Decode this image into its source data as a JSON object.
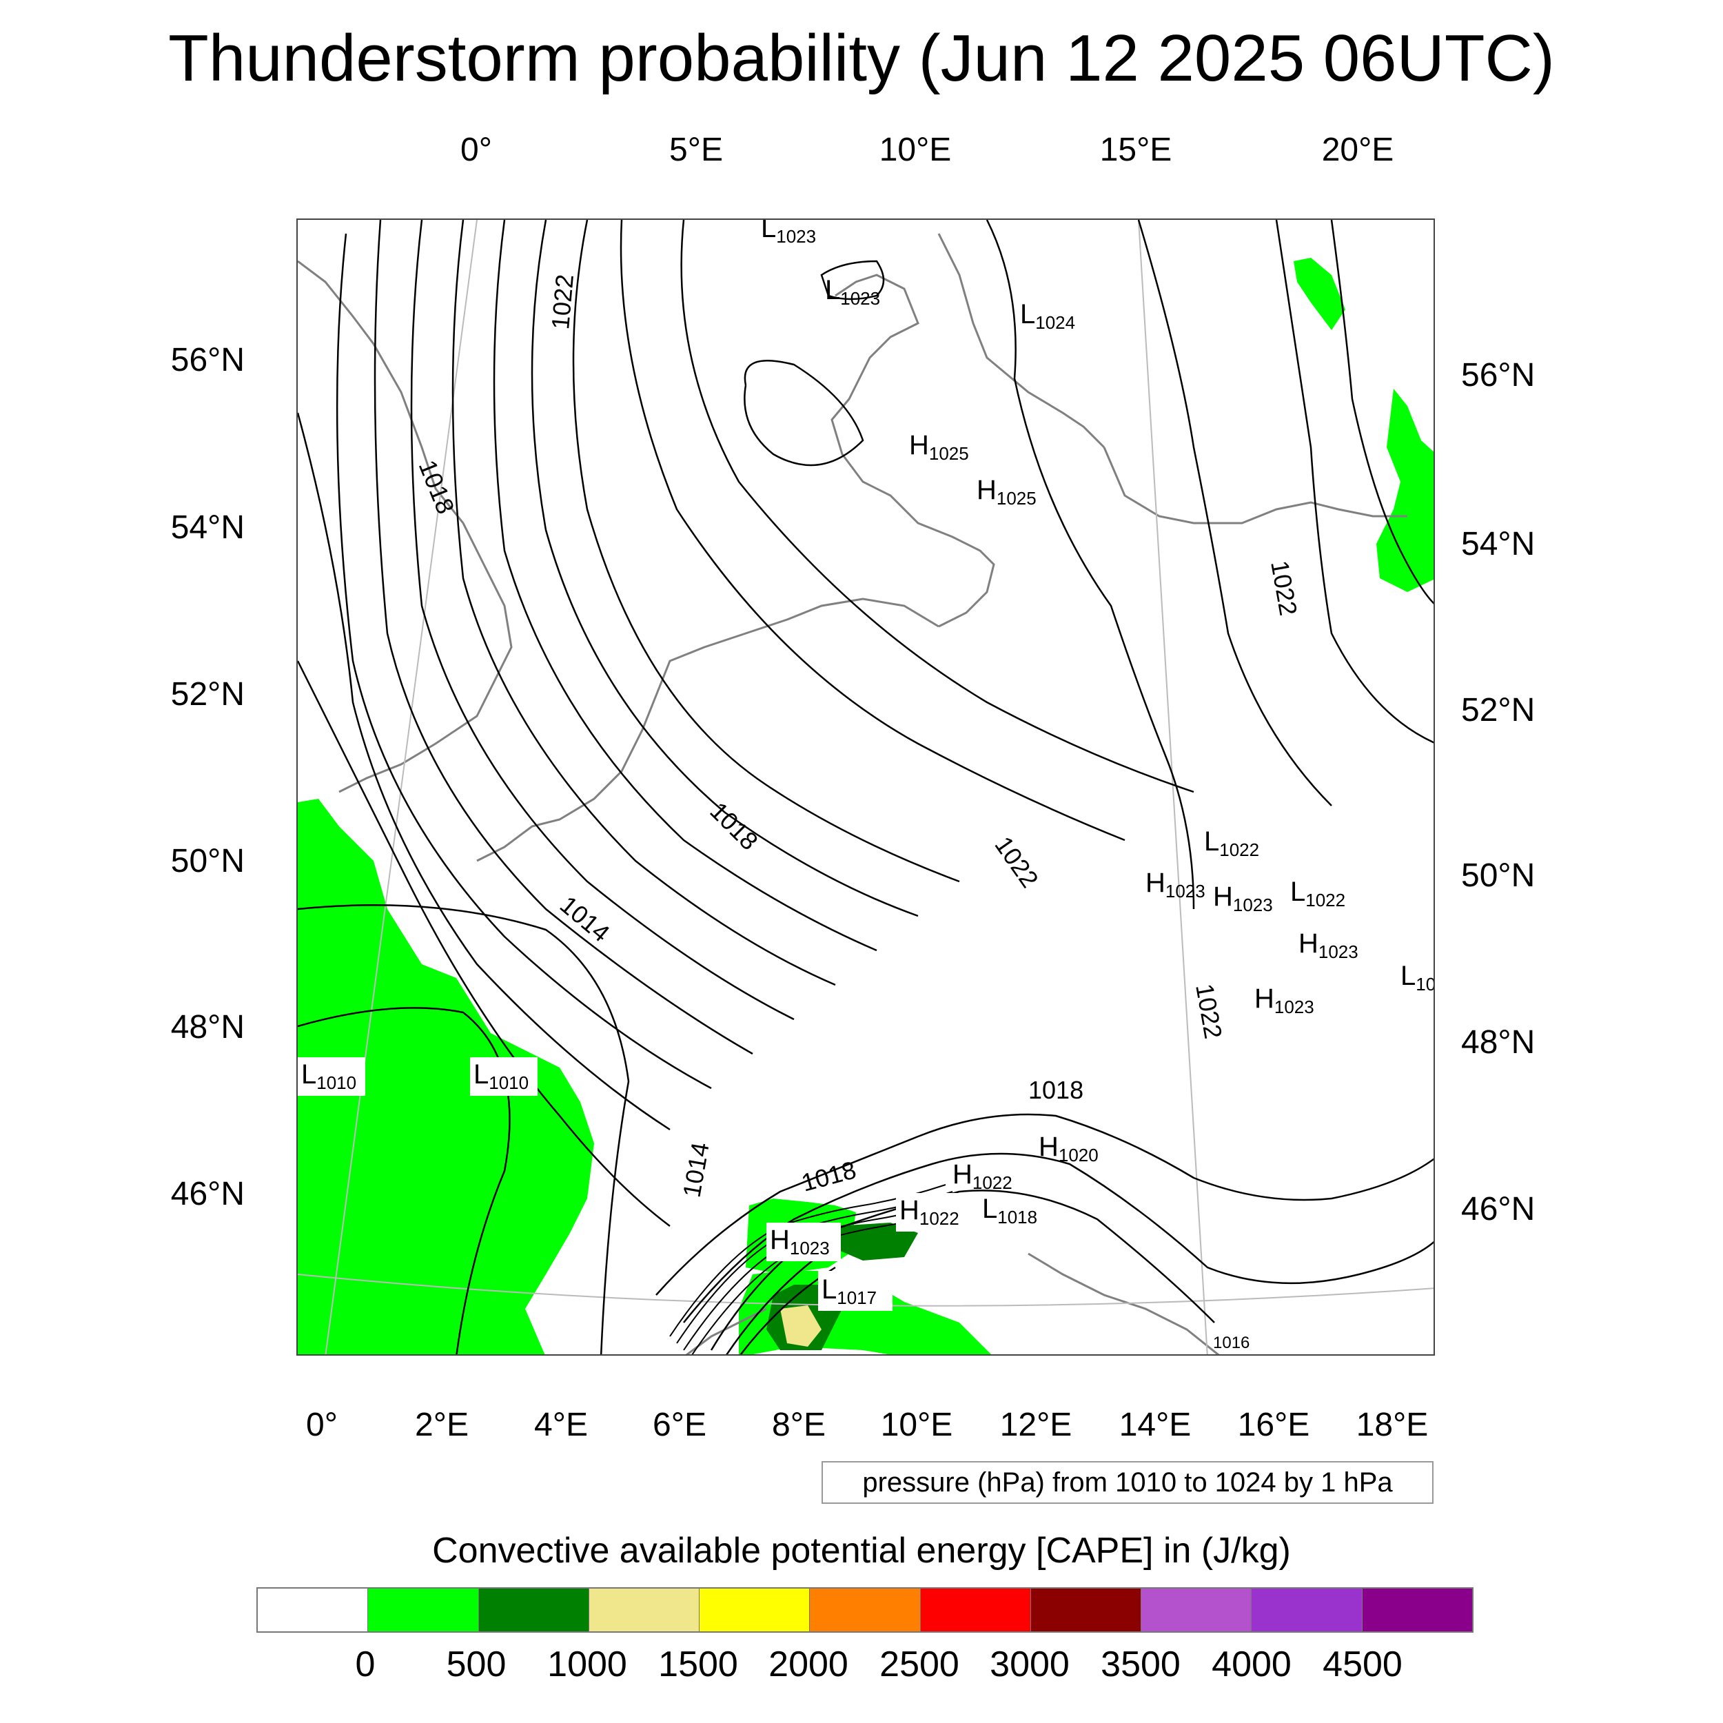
{
  "title": "Thunderstorm probability (Jun 12 2025 06UTC)",
  "top_lon_labels": [
    "0°",
    "5°E",
    "10°E",
    "15°E",
    "20°E"
  ],
  "bottom_lon_labels": [
    "0°",
    "2°E",
    "4°E",
    "6°E",
    "8°E",
    "10°E",
    "12°E",
    "14°E",
    "16°E",
    "18°E"
  ],
  "left_lat_labels": [
    "56°N",
    "54°N",
    "52°N",
    "50°N",
    "48°N",
    "46°N"
  ],
  "right_lat_labels": [
    "56°N",
    "54°N",
    "52°N",
    "50°N",
    "48°N",
    "46°N"
  ],
  "contour_labels": [
    "1022",
    "1018",
    "1018",
    "1014",
    "1022",
    "1022",
    "1022",
    "1018",
    "1014",
    "1018",
    "1016"
  ],
  "pressure_centers": [
    {
      "letter": "L",
      "value": "1023"
    },
    {
      "letter": "L",
      "value": "1023"
    },
    {
      "letter": "L",
      "value": "1024"
    },
    {
      "letter": "H",
      "value": "1025"
    },
    {
      "letter": "H",
      "value": "1025"
    },
    {
      "letter": "L",
      "value": "1022"
    },
    {
      "letter": "H",
      "value": "1023"
    },
    {
      "letter": "H",
      "value": "1023"
    },
    {
      "letter": "L",
      "value": "1022"
    },
    {
      "letter": "H",
      "value": "1023"
    },
    {
      "letter": "L",
      "value": "10"
    },
    {
      "letter": "H",
      "value": "1023"
    },
    {
      "letter": "L",
      "value": "1010"
    },
    {
      "letter": "L",
      "value": "1010"
    },
    {
      "letter": "H",
      "value": "1020"
    },
    {
      "letter": "H",
      "value": "1022"
    },
    {
      "letter": "H",
      "value": "1022"
    },
    {
      "letter": "L",
      "value": "1018"
    },
    {
      "letter": "H",
      "value": "1023"
    },
    {
      "letter": "L",
      "value": "1017"
    }
  ],
  "info_box": "pressure (hPa) from 1010 to 1024 by 1 hPa",
  "colorbar": {
    "title": "Convective available potential energy [CAPE] in (J/kg)",
    "colors": [
      "#ffffff",
      "#00ff00",
      "#008000",
      "#f0e68c",
      "#ffff00",
      "#ff8000",
      "#ff0000",
      "#8b0000",
      "#b452cd",
      "#9a32cd",
      "#8b008b"
    ],
    "labels": [
      "0",
      "500",
      "1000",
      "1500",
      "2000",
      "2500",
      "3000",
      "3500",
      "4000",
      "4500"
    ]
  },
  "colors": {
    "cape_0_500": "#00ff00",
    "cape_500_1000": "#008000",
    "cape_1000_1500": "#f0e68c",
    "isobar": "#000000",
    "coastline": "#808080"
  }
}
